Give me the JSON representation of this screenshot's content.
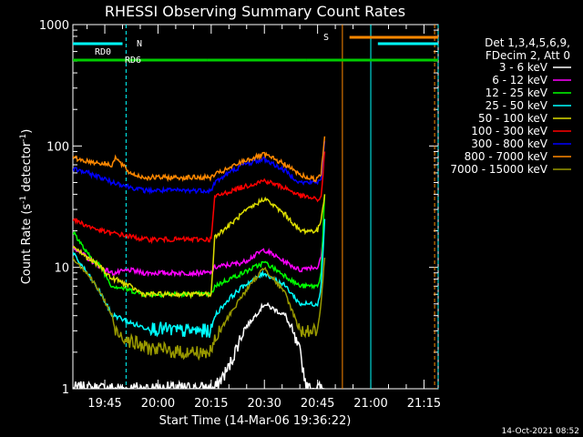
{
  "chart_data": {
    "type": "line",
    "title": "RHESSI Observing Summary Count Rates",
    "xlabel": "Start Time (14-Mar-06 19:36:22)",
    "ylabel_main": "Count Rate (s",
    "ylabel_sup1": "-1",
    "ylabel_mid": " detector",
    "ylabel_sup2": "-1",
    "ylabel_end": ")",
    "y_scale": "log",
    "ylim": [
      1,
      1000
    ],
    "xlim_minutes_after_1936": [
      0,
      103
    ],
    "x_ticks": [
      {
        "label": "19:45",
        "t": 9
      },
      {
        "label": "20:00",
        "t": 24
      },
      {
        "label": "20:15",
        "t": 39
      },
      {
        "label": "20:30",
        "t": 54
      },
      {
        "label": "20:45",
        "t": 69
      },
      {
        "label": "21:00",
        "t": 84
      },
      {
        "label": "21:15",
        "t": 99
      }
    ],
    "y_ticks": [
      {
        "label": "1",
        "v": 1
      },
      {
        "label": "10",
        "v": 10
      },
      {
        "label": "100",
        "v": 100
      },
      {
        "label": "1000",
        "v": 1000
      }
    ],
    "legend_header": [
      "Det 1,3,4,5,6,9,",
      "FDecim 2, Att 0"
    ],
    "legend_placement": "right",
    "series": [
      {
        "name": "3 - 6 keV",
        "color": "#ffffff",
        "t": [
          0,
          8,
          12,
          14,
          20,
          30,
          40,
          44,
          48,
          54,
          60,
          64,
          66,
          69,
          70,
          71
        ],
        "v": [
          1,
          1,
          1,
          1,
          1,
          1,
          1,
          1.5,
          3,
          5,
          4,
          2,
          1,
          1,
          1,
          1
        ]
      },
      {
        "name": "6 - 12 keV",
        "color": "#ff00ff",
        "t": [
          0,
          4,
          8,
          11,
          12,
          16,
          20,
          30,
          39,
          40,
          44,
          48,
          54,
          60,
          64,
          66,
          69,
          70,
          71
        ],
        "v": [
          15,
          12,
          10,
          9,
          9,
          9.5,
          9,
          9,
          9,
          10,
          10.5,
          11,
          14,
          11,
          9.5,
          10,
          10,
          12,
          25
        ]
      },
      {
        "name": "12 - 25 keV",
        "color": "#00ff00",
        "t": [
          0,
          4,
          8,
          11,
          12,
          16,
          20,
          30,
          39,
          40,
          44,
          48,
          54,
          60,
          64,
          66,
          69,
          70,
          71
        ],
        "v": [
          20,
          13,
          10,
          7,
          7,
          6.5,
          6,
          6,
          6,
          7,
          8,
          9,
          11,
          8.5,
          7,
          7,
          7,
          9,
          40
        ]
      },
      {
        "name": "25 - 50 keV",
        "color": "#00ffff",
        "t": [
          0,
          4,
          8,
          11,
          12,
          16,
          20,
          30,
          39,
          40,
          44,
          48,
          54,
          60,
          64,
          66,
          69,
          70,
          71
        ],
        "v": [
          13,
          9,
          6,
          4,
          4,
          3.5,
          3.2,
          3,
          3,
          4,
          5.5,
          7,
          9,
          7,
          5,
          5,
          5,
          7,
          25
        ]
      },
      {
        "name": "50 - 100 keV",
        "color": "#dddd00",
        "t": [
          0,
          4,
          8,
          11,
          12,
          16,
          20,
          30,
          39,
          40,
          44,
          48,
          54,
          60,
          64,
          66,
          69,
          70,
          71
        ],
        "v": [
          15,
          12,
          10,
          8,
          8,
          7,
          6,
          6,
          6,
          18,
          22,
          28,
          37,
          27,
          20,
          20,
          20,
          25,
          40
        ]
      },
      {
        "name": "100 - 300 keV",
        "color": "#ff0000",
        "t": [
          0,
          4,
          8,
          11,
          12,
          16,
          20,
          30,
          39,
          40,
          44,
          48,
          54,
          60,
          64,
          66,
          69,
          70,
          71
        ],
        "v": [
          25,
          22,
          20,
          19,
          19,
          18,
          17,
          17,
          17,
          38,
          42,
          46,
          52,
          45,
          39,
          38,
          36,
          38,
          90
        ]
      },
      {
        "name": "300 - 800 keV",
        "color": "#0000ff",
        "t": [
          0,
          4,
          8,
          11,
          12,
          16,
          20,
          30,
          39,
          40,
          44,
          48,
          54,
          60,
          64,
          66,
          69,
          70,
          71
        ],
        "v": [
          65,
          60,
          55,
          50,
          50,
          46,
          43,
          43,
          43,
          50,
          60,
          70,
          78,
          62,
          50,
          50,
          50,
          55,
          110
        ]
      },
      {
        "name": "800 - 7000 keV",
        "color": "#ff8800",
        "t": [
          0,
          4,
          8,
          11,
          12,
          16,
          20,
          30,
          39,
          40,
          44,
          48,
          54,
          60,
          64,
          66,
          69,
          70,
          71
        ],
        "v": [
          80,
          75,
          72,
          70,
          80,
          60,
          55,
          55,
          55,
          58,
          65,
          75,
          85,
          70,
          58,
          55,
          53,
          60,
          120
        ]
      },
      {
        "name": "7000 - 15000 keV",
        "color": "#999900",
        "t": [
          0,
          4,
          8,
          11,
          12,
          16,
          20,
          30,
          39,
          40,
          44,
          48,
          54,
          60,
          64,
          66,
          69,
          70,
          71
        ],
        "v": [
          12,
          9,
          6,
          4,
          3,
          2.5,
          2.2,
          2,
          2,
          2.5,
          4,
          6,
          10,
          6,
          3,
          3,
          3,
          5,
          12
        ]
      }
    ],
    "bars": [
      {
        "label": "RD0",
        "color": "#00ffff",
        "segments": [
          [
            0,
            14
          ]
        ]
      },
      {
        "label": "N",
        "color": "#00ffff",
        "segments": []
      },
      {
        "label": "S",
        "color": "#ff8800",
        "segments": [
          [
            78,
            103
          ]
        ]
      },
      {
        "label": "",
        "color": "#00ffff",
        "segments": [
          [
            86,
            103
          ]
        ]
      },
      {
        "label": "RD6",
        "color": "#00cc00",
        "segments": [
          [
            0,
            38
          ],
          [
            38,
            66
          ],
          [
            66,
            103
          ]
        ]
      }
    ],
    "vlines": [
      {
        "t": 15,
        "color": "#00ffff",
        "style": "dashed"
      },
      {
        "t": 76,
        "color": "#ff8800",
        "style": "solid"
      },
      {
        "t": 84,
        "color": "#00ffff",
        "style": "solid"
      },
      {
        "t": 102,
        "color": "#ff8800",
        "style": "dashed"
      },
      {
        "t": 103,
        "color": "#00ffff",
        "style": "dashed"
      }
    ]
  },
  "footer_timestamp": "14-Oct-2021 08:52"
}
